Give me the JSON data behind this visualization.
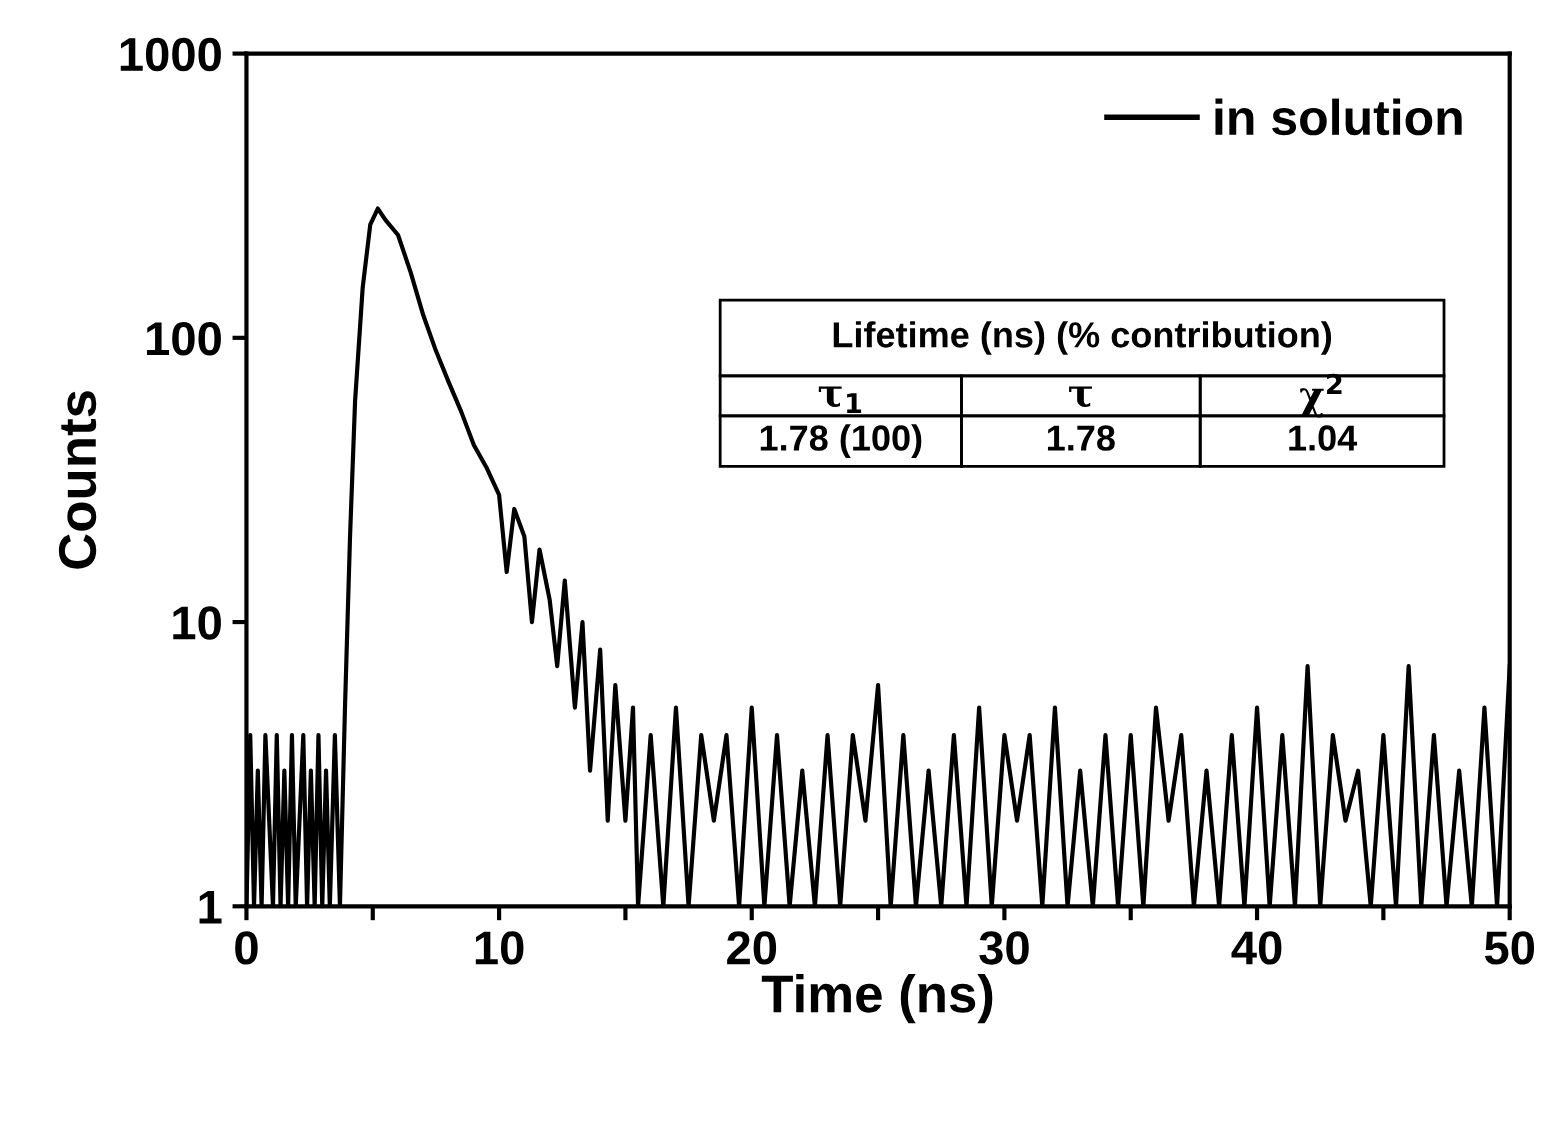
{
  "chart_data": {
    "type": "line",
    "xlabel": "Time (ns)",
    "ylabel": "Counts",
    "log": "y",
    "xlim": [
      0,
      50
    ],
    "ylim": [
      1,
      1000
    ],
    "xticks": [
      0,
      {
        "value": 5,
        "label": null
      },
      10,
      {
        "value": 15,
        "label": null
      },
      20,
      {
        "value": 25,
        "label": null
      },
      30,
      {
        "value": 35,
        "label": null
      },
      40,
      {
        "value": 45,
        "label": null
      },
      50
    ],
    "yticks": [
      1,
      10,
      100,
      1000
    ],
    "grid": false,
    "legend": "top right",
    "marker": "none",
    "line_style": "solid",
    "annotations": [
      "Lifetime (ns) (% contribution)",
      "τ$_{1}$",
      "τ",
      "χ$^{2}$",
      "1.78 (100)",
      "1.78",
      "1.04"
    ],
    "series": [
      {
        "name": "in solution",
        "color": "#000000",
        "x": [
          0,
          0.15,
          0.3,
          0.45,
          0.6,
          0.75,
          0.9,
          1.05,
          1.2,
          1.35,
          1.5,
          1.65,
          1.8,
          1.95,
          2.1,
          2.25,
          2.4,
          2.55,
          2.7,
          2.85,
          3.0,
          3.15,
          3.3,
          3.5,
          3.7,
          3.9,
          4.1,
          4.3,
          4.6,
          4.9,
          5.2,
          5.5,
          6.0,
          6.5,
          7.0,
          7.5,
          8.0,
          8.5,
          9.0,
          9.5,
          10.0,
          10.3,
          10.6,
          11.0,
          11.3,
          11.6,
          12.0,
          12.3,
          12.6,
          13.0,
          13.3,
          13.6,
          14.0,
          14.3,
          14.6,
          15.0,
          15.3,
          15.5,
          16.0,
          16.5,
          17.0,
          17.5,
          18.0,
          18.5,
          19.0,
          19.5,
          20.0,
          20.5,
          21.0,
          21.5,
          22.0,
          22.5,
          23.0,
          23.5,
          24.0,
          24.5,
          25.0,
          25.5,
          26.0,
          26.5,
          27.0,
          27.5,
          28.0,
          28.5,
          29.0,
          29.5,
          30.0,
          30.5,
          31.0,
          31.5,
          32.0,
          32.5,
          33.0,
          33.5,
          34.0,
          34.5,
          35.0,
          35.5,
          36.0,
          36.5,
          37.0,
          37.5,
          38.0,
          38.5,
          39.0,
          39.5,
          40.0,
          40.5,
          41.0,
          41.5,
          42.0,
          42.5,
          43.0,
          43.5,
          44.0,
          44.5,
          45.0,
          45.5,
          46.0,
          46.5,
          47.0,
          47.5,
          48.0,
          48.5,
          49.0,
          49.5,
          50.0
        ],
        "values": [
          1,
          4,
          1,
          3,
          1,
          4,
          2,
          1,
          4,
          1,
          3,
          1,
          4,
          1,
          2,
          4,
          1,
          3,
          1,
          4,
          1,
          3,
          1,
          4,
          1,
          5,
          20,
          60,
          150,
          250,
          285,
          260,
          230,
          170,
          120,
          90,
          70,
          55,
          42,
          35,
          28,
          15,
          25,
          20,
          10,
          18,
          12,
          7,
          14,
          5,
          10,
          3,
          8,
          2,
          6,
          2,
          5,
          1,
          4,
          1,
          5,
          1,
          4,
          2,
          4,
          1,
          5,
          1,
          4,
          1,
          3,
          1,
          4,
          1,
          4,
          2,
          6,
          1,
          4,
          1,
          3,
          1,
          4,
          1,
          5,
          1,
          4,
          2,
          4,
          1,
          5,
          1,
          3,
          1,
          4,
          1,
          4,
          1,
          5,
          2,
          4,
          1,
          3,
          1,
          4,
          1,
          5,
          1,
          4,
          1,
          7,
          1,
          4,
          2,
          3,
          1,
          4,
          1,
          7,
          1,
          4,
          1,
          3,
          1,
          5,
          1,
          7
        ]
      }
    ]
  }
}
